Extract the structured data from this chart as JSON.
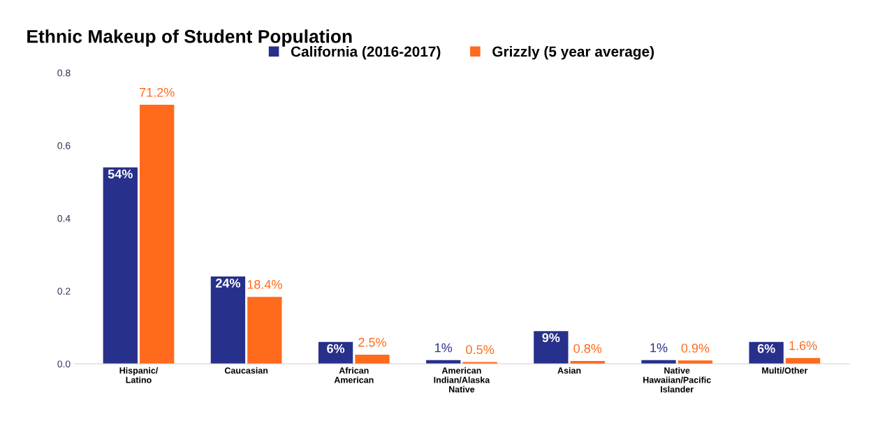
{
  "chart_data": {
    "type": "bar",
    "title": "Ethnic Makeup of Student Population",
    "categories": [
      "Hispanic/\nLatino",
      "Caucasian",
      "African\nAmerican",
      "American\nIndian/Alaska\nNative",
      "Asian",
      "Native\nHawaiian/Pacific\nIslander",
      "Multi/Other"
    ],
    "series": [
      {
        "name": "California (2016-2017)",
        "color": "#27308a",
        "values": [
          0.54,
          0.24,
          0.06,
          0.01,
          0.09,
          0.01,
          0.06
        ],
        "value_labels": [
          "54%",
          "24%",
          "6%",
          "1%",
          "9%",
          "1%",
          "6%"
        ]
      },
      {
        "name": "Grizzly (5 year average)",
        "color": "#ff6a1c",
        "values": [
          0.712,
          0.184,
          0.025,
          0.005,
          0.008,
          0.009,
          0.016
        ],
        "value_labels": [
          "71.2%",
          "18.4%",
          "2.5%",
          "0.5%",
          "0.8%",
          "0.9%",
          "1.6%"
        ]
      }
    ],
    "ylim": [
      0,
      0.8
    ],
    "yticks": [
      {
        "value": 0,
        "label": "0.0"
      },
      {
        "value": 0.2,
        "label": "0.2"
      },
      {
        "value": 0.4,
        "label": "0.4"
      },
      {
        "value": 0.6,
        "label": "0.6"
      },
      {
        "value": 0.8,
        "label": "0.8"
      }
    ],
    "grid": false,
    "legend": "top"
  }
}
